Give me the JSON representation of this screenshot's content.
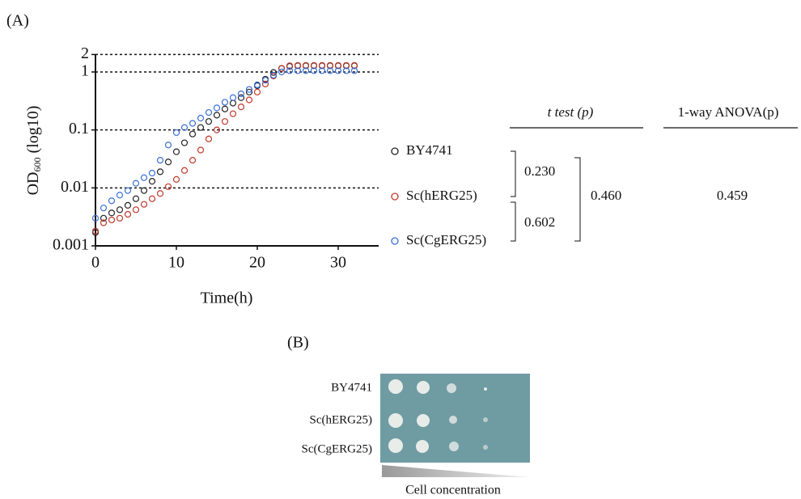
{
  "panel_labels": [
    "(A)",
    "(B)"
  ],
  "chart_data": {
    "type": "scatter",
    "xlabel": "Time(h)",
    "ylabel": {
      "main": "OD",
      "sub": "600",
      "rest": "(log10)"
    },
    "x": [
      0,
      1,
      2,
      3,
      4,
      5,
      6,
      7,
      8,
      9,
      10,
      11,
      12,
      13,
      14,
      15,
      16,
      17,
      18,
      19,
      20,
      21,
      22,
      23,
      24,
      25,
      26,
      27,
      28,
      29,
      30,
      31,
      32
    ],
    "series": [
      {
        "name": "BY4741",
        "color": "#222222",
        "values": [
          0.0017,
          0.003,
          0.0037,
          0.0042,
          0.005,
          0.0065,
          0.009,
          0.013,
          0.019,
          0.028,
          0.042,
          0.06,
          0.085,
          0.11,
          0.14,
          0.18,
          0.23,
          0.29,
          0.36,
          0.45,
          0.58,
          0.75,
          0.98,
          1.15,
          1.25,
          1.28,
          1.28,
          1.28,
          1.28,
          1.28,
          1.28,
          1.28,
          1.28
        ]
      },
      {
        "name": "Sc(hERG25)",
        "color": "#c0392b",
        "values": [
          0.0018,
          0.0025,
          0.0028,
          0.003,
          0.0035,
          0.0042,
          0.0052,
          0.0065,
          0.008,
          0.0105,
          0.014,
          0.02,
          0.03,
          0.045,
          0.07,
          0.1,
          0.14,
          0.19,
          0.25,
          0.33,
          0.45,
          0.62,
          0.85,
          1.15,
          1.28,
          1.3,
          1.3,
          1.3,
          1.3,
          1.3,
          1.3,
          1.3,
          1.3
        ]
      },
      {
        "name": "Sc(CgERG25)",
        "color": "#3a6fd6",
        "values": [
          0.003,
          0.0045,
          0.006,
          0.0075,
          0.009,
          0.012,
          0.015,
          0.018,
          0.03,
          0.055,
          0.09,
          0.11,
          0.13,
          0.16,
          0.2,
          0.24,
          0.3,
          0.36,
          0.42,
          0.5,
          0.6,
          0.72,
          0.88,
          1.0,
          1.05,
          1.05,
          1.05,
          1.05,
          1.05,
          1.05,
          1.05,
          1.05,
          1.05
        ]
      }
    ],
    "xlim": [
      0,
      35
    ],
    "xticks": [
      0,
      10,
      20,
      30
    ],
    "ylim": [
      0.001,
      2
    ],
    "yticks": [
      0.001,
      0.01,
      0.1,
      1,
      2
    ],
    "log_y": true,
    "grid": true
  },
  "stats": {
    "t_test_header": "t test (p)",
    "anova_header": "1-way ANOVA(p)",
    "pair_1": "0.230",
    "pair_2": "0.602",
    "t_test_all": "0.460",
    "anova": "0.459"
  },
  "spot_assay": {
    "rows": [
      "BY4741",
      "Sc(hERG25)",
      "Sc(CgERG25)"
    ],
    "caption": "Cell concentration"
  }
}
